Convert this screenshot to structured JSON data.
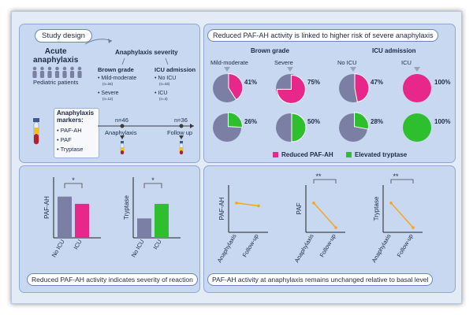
{
  "panels": {
    "study_design": {
      "title": "Study design",
      "acute": "Acute\nanaphylaxis",
      "patients": "Pediatric patients",
      "severity_title": "Anaphylaxis severity",
      "brown_title": "Brown grade",
      "brown_items": [
        {
          "label": "• Mild-moderate",
          "n": "(n=34)"
        },
        {
          "label": "• Severe",
          "n": "(n=12)"
        }
      ],
      "icu_title": "ICU admission",
      "icu_items": [
        {
          "label": "• No ICU",
          "n": "(n=43)"
        },
        {
          "label": "• ICU",
          "n": "(n=3)"
        }
      ],
      "markers_title": "Anaphylaxis\nmarkers:",
      "markers": [
        "• PAF-AH",
        "• PAF",
        "• Tryptase"
      ],
      "timeline": [
        {
          "n": "n=46",
          "label": "Anaphylaxis"
        },
        {
          "n": "n=36",
          "label": "Follow up"
        }
      ]
    },
    "pie_panel": {
      "title": "Reduced PAF-AH activity is linked to higher risk of severe anaphylaxis",
      "brown_title": "Brown grade",
      "icu_title": "ICU admission",
      "columns": [
        "Mild-moderate",
        "Severe",
        "No ICU",
        "ICU"
      ],
      "rows": [
        {
          "name": "Reduced PAF-AH",
          "color": "#e8278a",
          "values": [
            41,
            75,
            47,
            100
          ],
          "labels": [
            "41%",
            "75%",
            "47%",
            "100%"
          ]
        },
        {
          "name": "Elevated tryptase",
          "color": "#2dbf2d",
          "values": [
            26,
            50,
            28,
            100
          ],
          "labels": [
            "26%",
            "50%",
            "28%",
            "100%"
          ]
        }
      ],
      "legend": [
        "Reduced PAF-AH",
        "Elevated tryptase"
      ]
    },
    "bar_panel": {
      "title": "Reduced PAF-AH activity indicates severity of reaction",
      "star": "*",
      "charts": [
        {
          "ylabel": "PAF-AH",
          "categories": [
            "No ICU",
            "ICU"
          ],
          "values": [
            0.68,
            0.56
          ],
          "colors": [
            "#7b7fa3",
            "#e8278a"
          ]
        },
        {
          "ylabel": "Tryptase",
          "categories": [
            "No ICU",
            "ICU"
          ],
          "values": [
            0.32,
            0.56
          ],
          "colors": [
            "#7b7fa3",
            "#2dbf2d"
          ]
        }
      ]
    },
    "line_panel": {
      "title": "PAF-AH activity at anaphylaxis remains unchanged relative to basal level",
      "sig": "**",
      "charts": [
        {
          "ylabel": "PAF-AH",
          "categories": [
            "Anaphylaxis",
            "Follow-up"
          ],
          "values": [
            0.62,
            0.56
          ],
          "sig": ""
        },
        {
          "ylabel": "PAF",
          "categories": [
            "Anaphylaxis",
            "Follow-up"
          ],
          "values": [
            0.62,
            0.1
          ],
          "sig": "**"
        },
        {
          "ylabel": "Tryptase",
          "categories": [
            "Anaphylaxis",
            "Follow-up"
          ],
          "values": [
            0.62,
            0.1
          ],
          "sig": "**"
        }
      ],
      "line_color": "#f2a81a"
    }
  },
  "colors": {
    "gray": "#7b7fa3",
    "pink": "#e8278a",
    "green": "#2dbf2d",
    "orange": "#f2a81a"
  }
}
